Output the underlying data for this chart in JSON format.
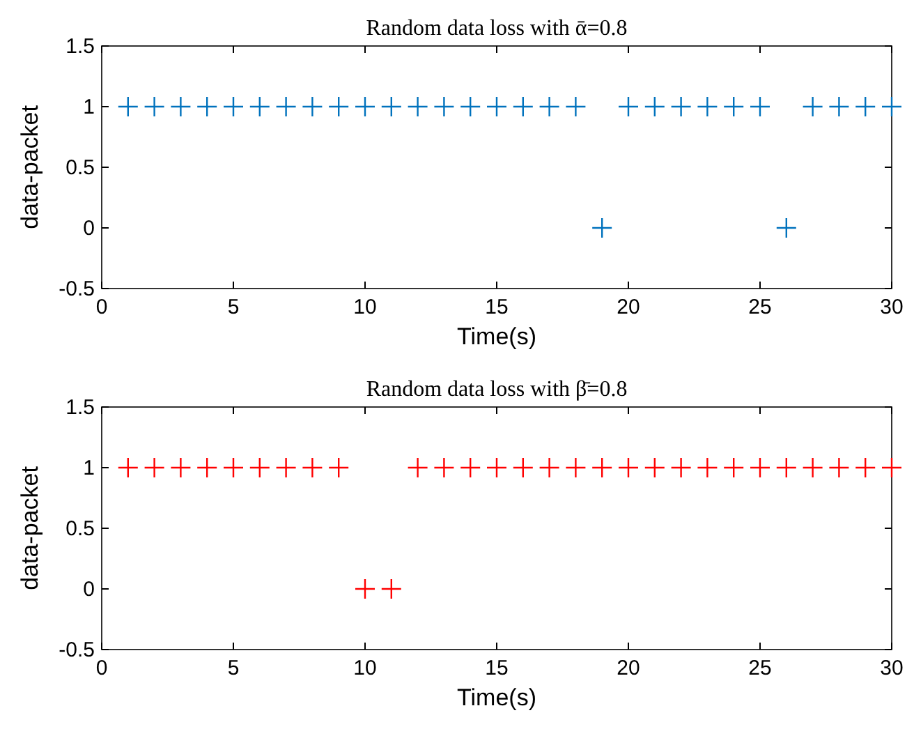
{
  "chart_data": [
    {
      "type": "scatter",
      "title": "Random data loss with ᾱ=0.8",
      "xlabel": "Time(s)",
      "ylabel": "data-packet",
      "x": [
        1,
        2,
        3,
        4,
        5,
        6,
        7,
        8,
        9,
        10,
        11,
        12,
        13,
        14,
        15,
        16,
        17,
        18,
        19,
        20,
        21,
        22,
        23,
        24,
        25,
        26,
        27,
        28,
        29,
        30
      ],
      "series": [
        {
          "color": "#0072bd",
          "values": [
            1,
            1,
            1,
            1,
            1,
            1,
            1,
            1,
            1,
            1,
            1,
            1,
            1,
            1,
            1,
            1,
            1,
            1,
            0,
            1,
            1,
            1,
            1,
            1,
            1,
            0,
            1,
            1,
            1,
            1
          ]
        }
      ],
      "xlim": [
        0,
        30
      ],
      "xticks": [
        0,
        5,
        10,
        15,
        20,
        25,
        30
      ],
      "ylim": [
        -0.5,
        1.5
      ],
      "yticks": [
        -0.5,
        0,
        0.5,
        1,
        1.5
      ],
      "grid": false,
      "marker": "cross"
    },
    {
      "type": "scatter",
      "title": "Random data loss with β̄=0.8",
      "xlabel": "Time(s)",
      "ylabel": "data-packet",
      "x": [
        1,
        2,
        3,
        4,
        5,
        6,
        7,
        8,
        9,
        10,
        11,
        12,
        13,
        14,
        15,
        16,
        17,
        18,
        19,
        20,
        21,
        22,
        23,
        24,
        25,
        26,
        27,
        28,
        29,
        30
      ],
      "series": [
        {
          "color": "#ff0000",
          "values": [
            1,
            1,
            1,
            1,
            1,
            1,
            1,
            1,
            1,
            0,
            0,
            1,
            1,
            1,
            1,
            1,
            1,
            1,
            1,
            1,
            1,
            1,
            1,
            1,
            1,
            1,
            1,
            1,
            1,
            1
          ]
        }
      ],
      "xlim": [
        0,
        30
      ],
      "xticks": [
        0,
        5,
        10,
        15,
        20,
        25,
        30
      ],
      "ylim": [
        -0.5,
        1.5
      ],
      "yticks": [
        -0.5,
        0,
        0.5,
        1,
        1.5
      ],
      "grid": false,
      "marker": "cross"
    }
  ]
}
